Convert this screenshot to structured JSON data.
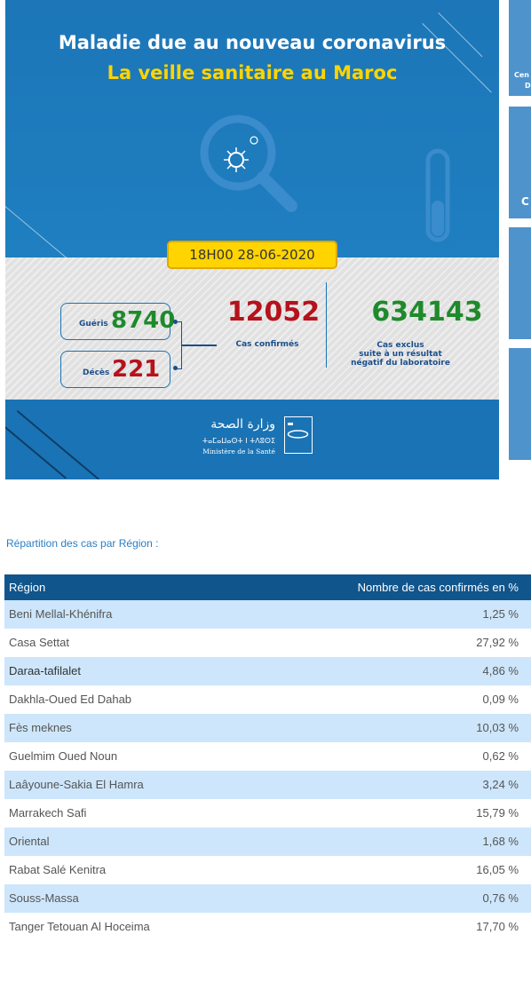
{
  "banner": {
    "title_line1": "Maladie due au nouveau coronavirus",
    "title_line2": "La veille sanitaire au Maroc",
    "datetime": "18H00  28-06-2020",
    "gueris_label": "Guéris",
    "gueris_value": "8740",
    "deces_label": "Décès",
    "deces_value": "221",
    "confirmed_value": "12052",
    "confirmed_label": "Cas confirmés",
    "excluded_value": "634143",
    "excluded_label_1": "Cas exclus",
    "excluded_label_2": "suite à un résultat",
    "excluded_label_3": "négatif du laboratoire",
    "ministry_ar": "وزارة الصحة",
    "ministry_tf": "ⵜⴰⵎⴰⵡⴰⵙⵜ ⵏ ⵜⴷⵓⵙⵉ",
    "ministry_fr": "Ministère de la Santé",
    "colors": {
      "blue": "#1a73b5",
      "yellow": "#ffd400",
      "red": "#b5121b",
      "green": "#1f8a2b"
    }
  },
  "side_cards": {
    "card1_text_1": "Cen",
    "card1_text_2": "D",
    "card2_text": "C"
  },
  "section_title": "Répartition des cas par Région :",
  "table": {
    "headers": {
      "region": "Région",
      "cases": "Nombre de cas confirmés en %"
    },
    "rows": [
      {
        "region": "Beni Mellal-Khénifra",
        "pct": "1,25 %"
      },
      {
        "region": "Casa Settat",
        "pct": "27,92 %"
      },
      {
        "region": "Daraa-tafilalet",
        "pct": "4,86 %"
      },
      {
        "region": "Dakhla-Oued Ed Dahab",
        "pct": "0,09 %"
      },
      {
        "region": "Fès meknes",
        "pct": "10,03 %"
      },
      {
        "region": "Guelmim Oued Noun",
        "pct": "0,62 %"
      },
      {
        "region": "Laâyoune-Sakia El Hamra",
        "pct": "3,24 %"
      },
      {
        "region": "Marrakech Safi",
        "pct": "15,79 %"
      },
      {
        "region": "Oriental",
        "pct": "1,68 %"
      },
      {
        "region": "Rabat Salé Kenitra",
        "pct": "16,05 %"
      },
      {
        "region": "Souss-Massa",
        "pct": "0,76 %"
      },
      {
        "region": "Tanger Tetouan Al Hoceima",
        "pct": "17,70 %"
      }
    ]
  }
}
